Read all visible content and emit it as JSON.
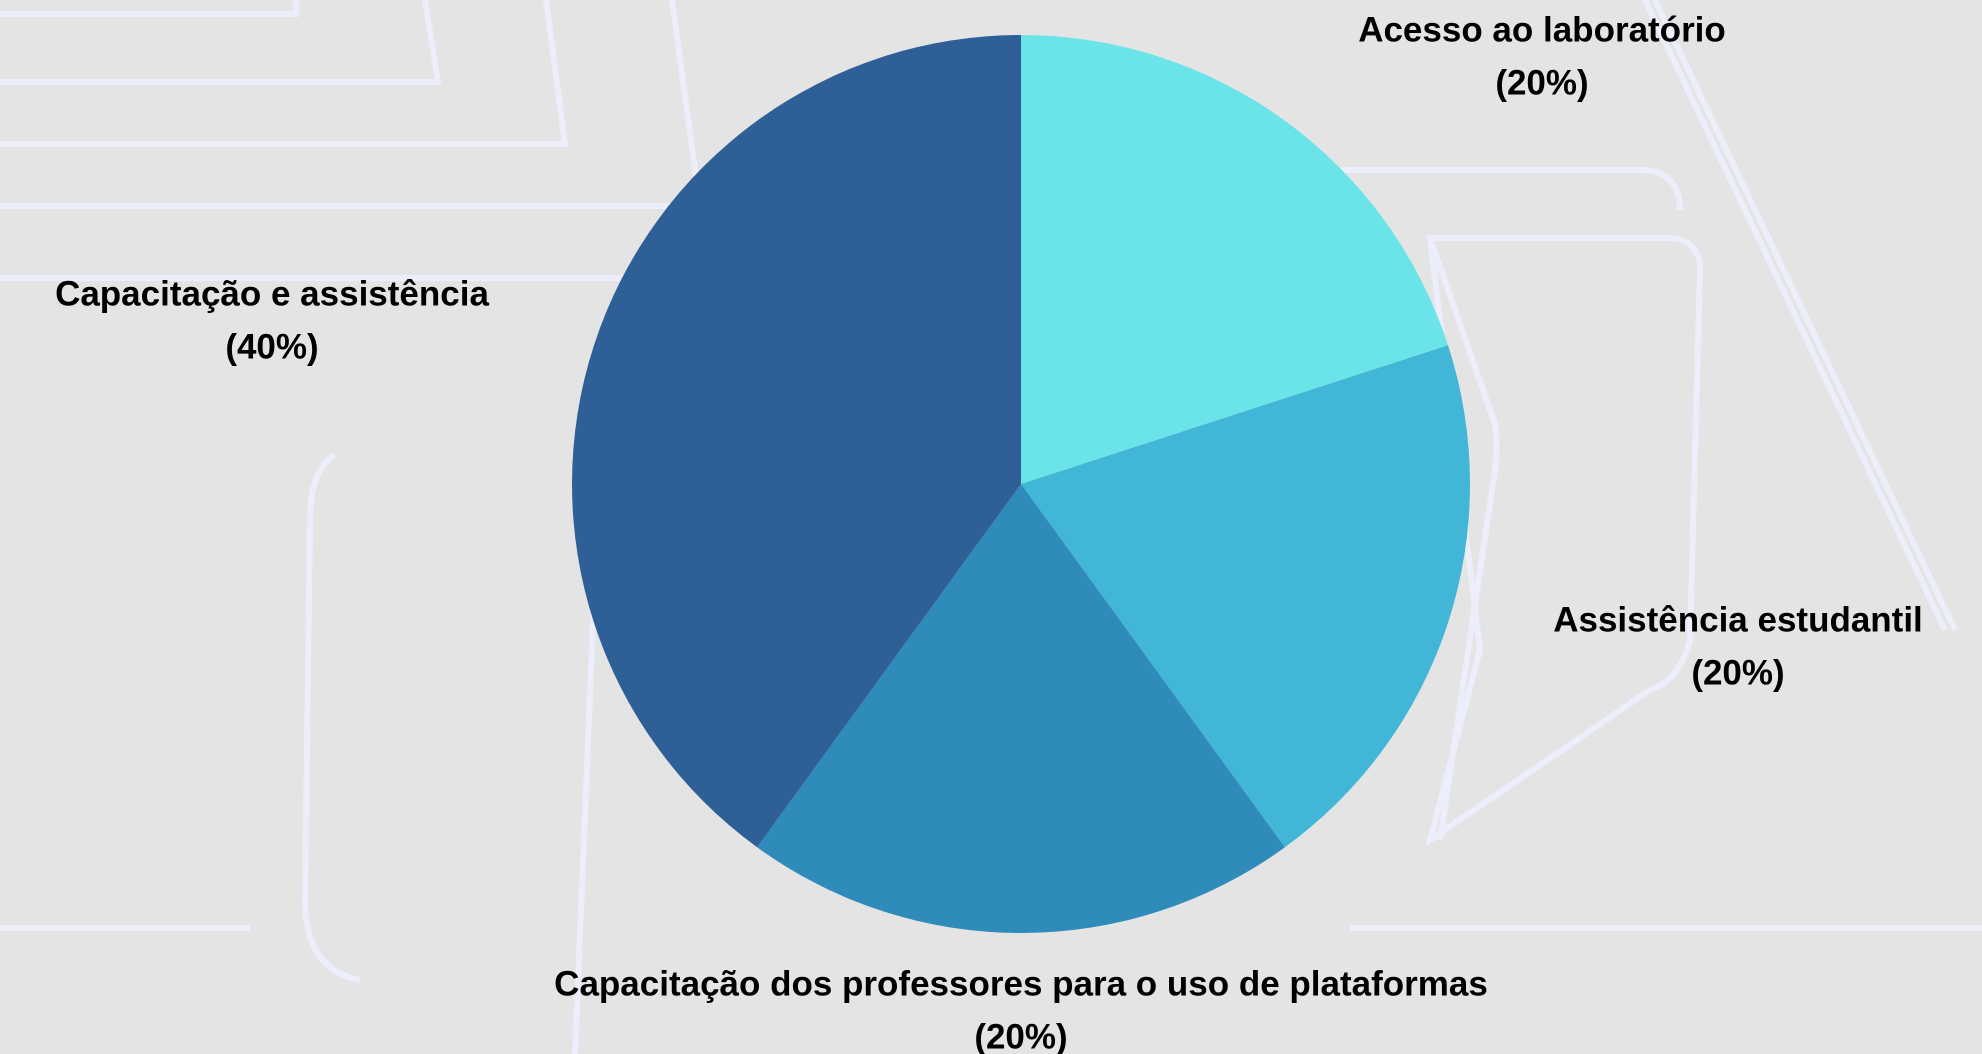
{
  "chart_data": {
    "type": "pie",
    "categories": [
      "Acesso ao laboratório",
      "Assistência estudantil",
      "Capacitação dos professores para o uso de plataformas",
      "Capacitação e assistência"
    ],
    "values": [
      20,
      20,
      20,
      40
    ],
    "value_labels": [
      "(20%)",
      "(20%)",
      "(20%)",
      "(40%)"
    ],
    "colors": [
      "#6be4e9",
      "#41b6d6",
      "#2e8bba",
      "#2e5f97"
    ]
  }
}
